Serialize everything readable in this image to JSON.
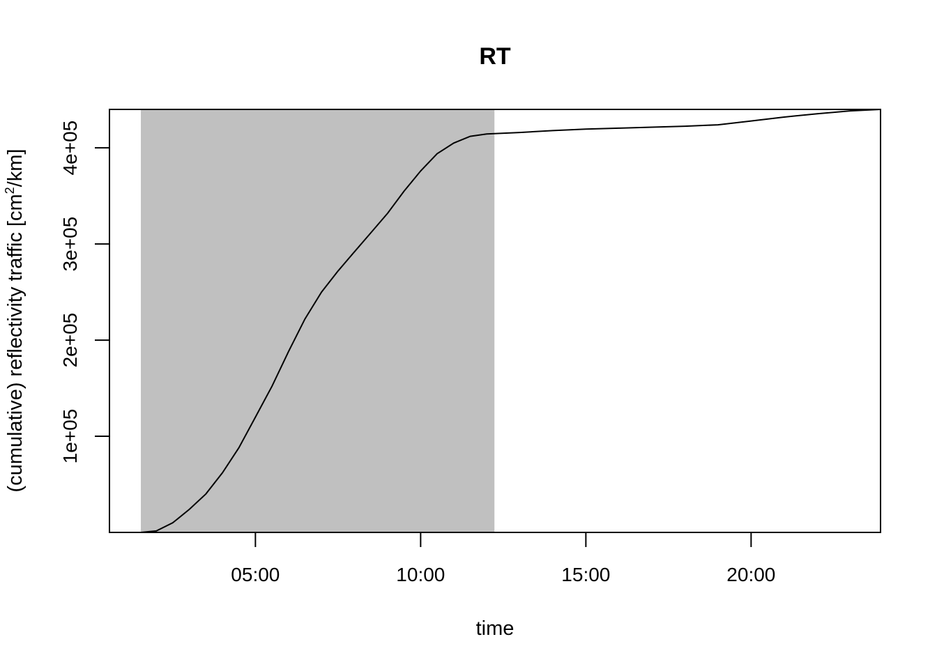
{
  "chart_data": {
    "type": "area",
    "title": "RT",
    "xlabel": "time",
    "ylabel_main": "(cumulative) reflectivity traffic [cm",
    "ylabel_sup": "2",
    "ylabel_tail": "/km]",
    "xlim": [
      "00:35",
      "23:55"
    ],
    "ylim": [
      0,
      440000
    ],
    "x_ticks": [
      {
        "value": "05:00",
        "label": "05:00"
      },
      {
        "value": "10:00",
        "label": "10:00"
      },
      {
        "value": "15:00",
        "label": "15:00"
      },
      {
        "value": "20:00",
        "label": "20:00"
      }
    ],
    "y_ticks": [
      {
        "value": 100000,
        "label": "1e+05"
      },
      {
        "value": 200000,
        "label": "2e+05"
      },
      {
        "value": 300000,
        "label": "3e+05"
      },
      {
        "value": 400000,
        "label": "4e+05"
      }
    ],
    "shaded_interval": {
      "start": "01:32",
      "end": "12:14",
      "color": "#c0c0c0"
    },
    "series": [
      {
        "color": "#000000",
        "points": [
          {
            "x": "00:35",
            "y": 0
          },
          {
            "x": "01:32",
            "y": 0
          },
          {
            "x": "02:00",
            "y": 1500
          },
          {
            "x": "02:30",
            "y": 10000
          },
          {
            "x": "03:00",
            "y": 24000
          },
          {
            "x": "03:30",
            "y": 40000
          },
          {
            "x": "04:00",
            "y": 62000
          },
          {
            "x": "04:30",
            "y": 88000
          },
          {
            "x": "05:00",
            "y": 120000
          },
          {
            "x": "05:30",
            "y": 152000
          },
          {
            "x": "06:00",
            "y": 188000
          },
          {
            "x": "06:30",
            "y": 222000
          },
          {
            "x": "07:00",
            "y": 250000
          },
          {
            "x": "07:30",
            "y": 272000
          },
          {
            "x": "08:00",
            "y": 292000
          },
          {
            "x": "08:30",
            "y": 312000
          },
          {
            "x": "09:00",
            "y": 332000
          },
          {
            "x": "09:30",
            "y": 355000
          },
          {
            "x": "10:00",
            "y": 376000
          },
          {
            "x": "10:30",
            "y": 394000
          },
          {
            "x": "11:00",
            "y": 405000
          },
          {
            "x": "11:30",
            "y": 412000
          },
          {
            "x": "12:00",
            "y": 414500
          },
          {
            "x": "13:00",
            "y": 416000
          },
          {
            "x": "14:00",
            "y": 418000
          },
          {
            "x": "15:00",
            "y": 419500
          },
          {
            "x": "16:00",
            "y": 420500
          },
          {
            "x": "17:00",
            "y": 421500
          },
          {
            "x": "18:00",
            "y": 422500
          },
          {
            "x": "19:00",
            "y": 424000
          },
          {
            "x": "20:00",
            "y": 428000
          },
          {
            "x": "21:00",
            "y": 432000
          },
          {
            "x": "22:00",
            "y": 435500
          },
          {
            "x": "23:00",
            "y": 438500
          },
          {
            "x": "23:55",
            "y": 440000
          }
        ]
      }
    ]
  }
}
